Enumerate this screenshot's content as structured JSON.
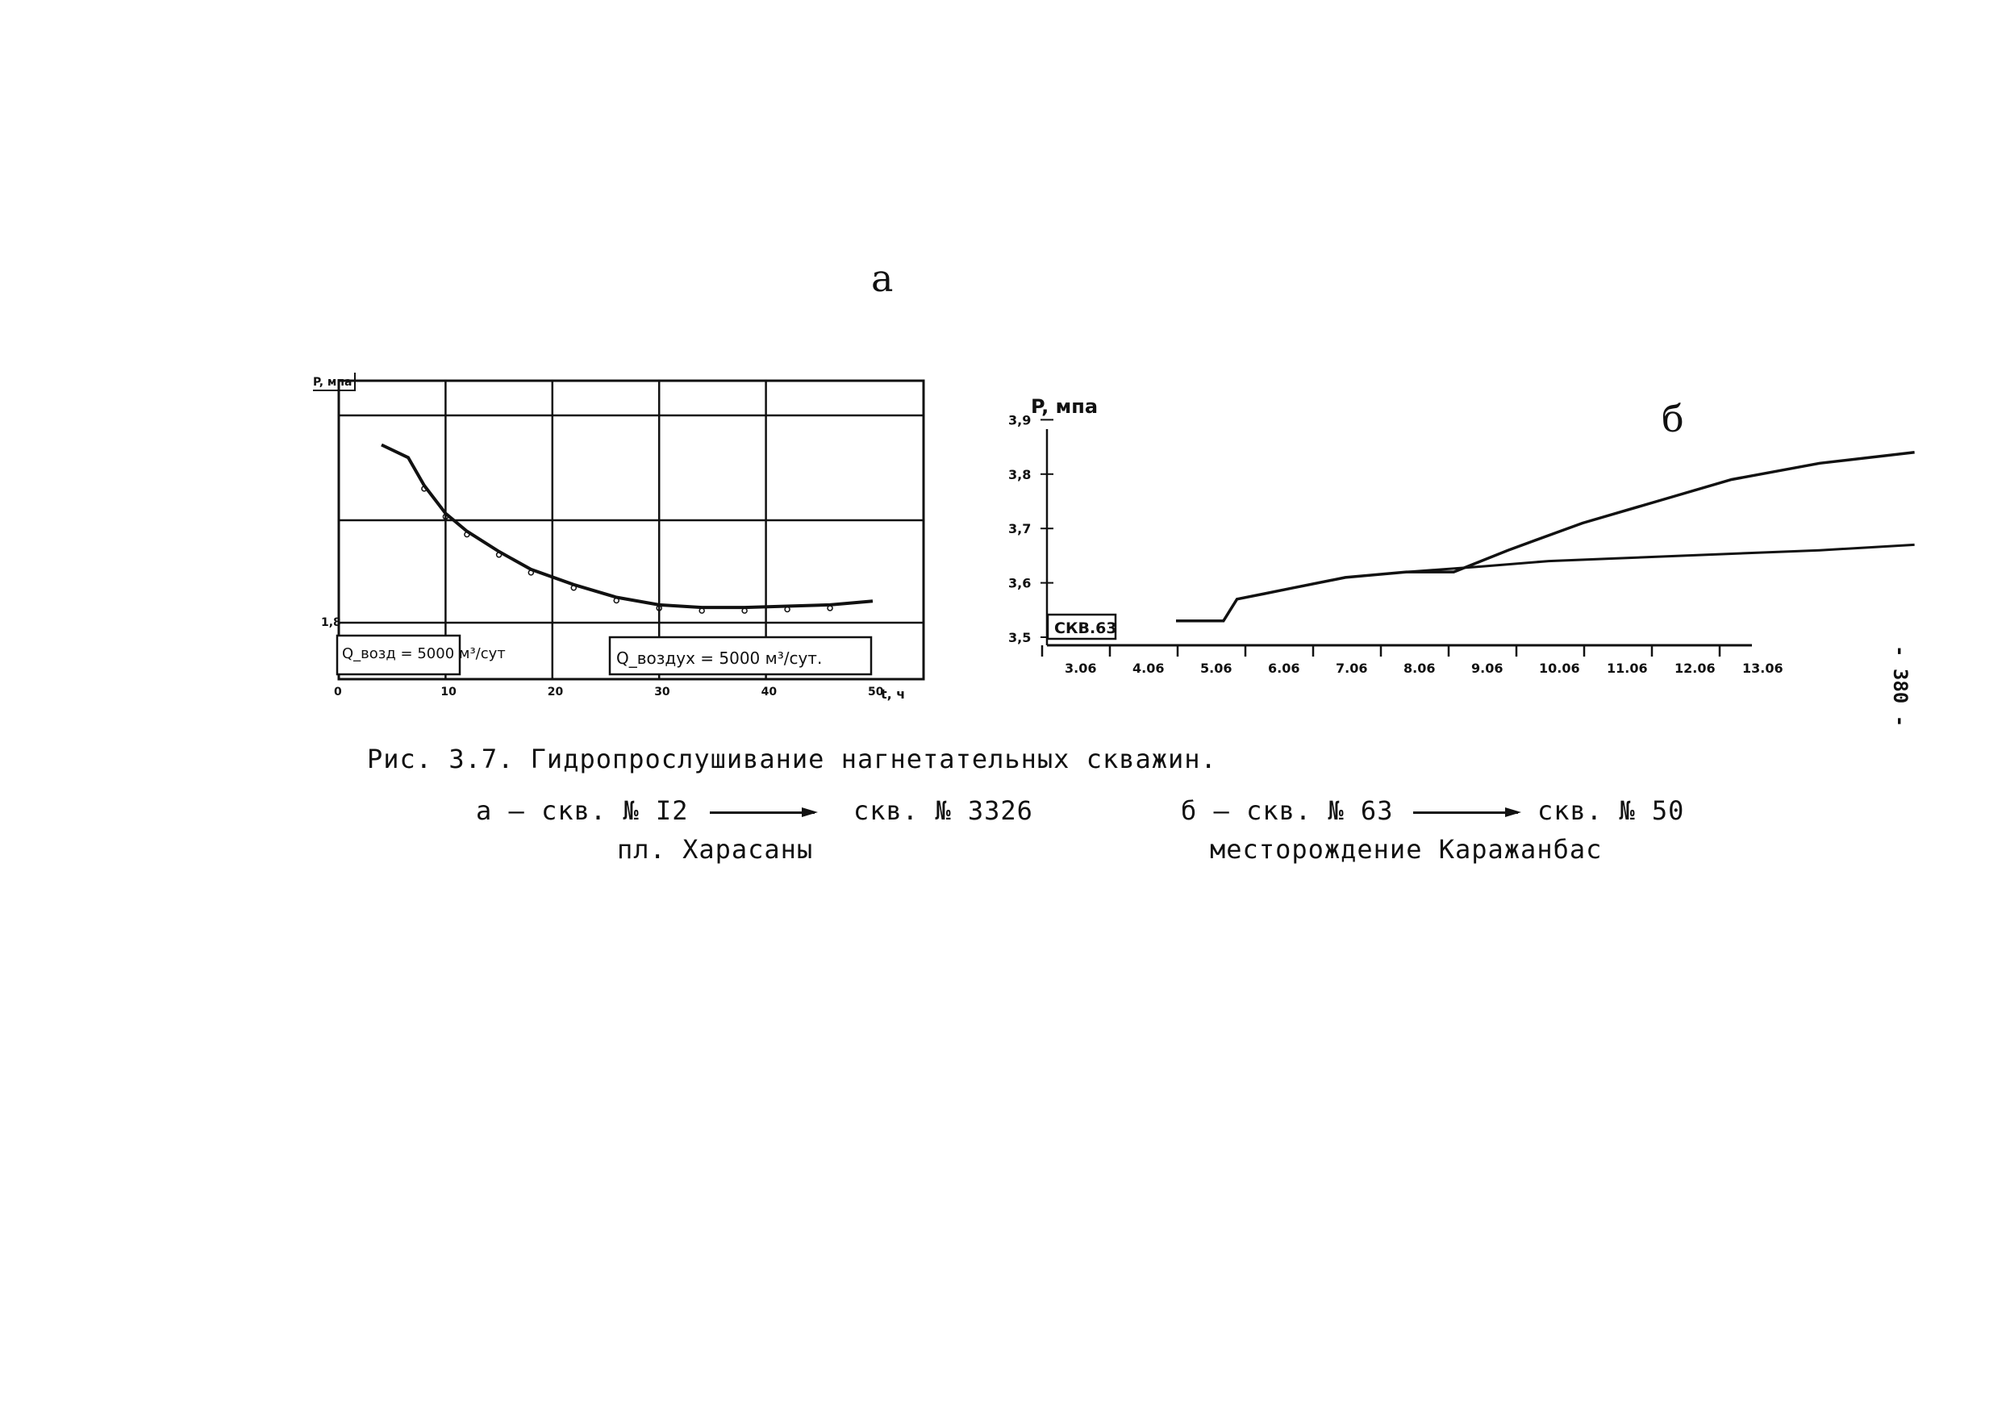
{
  "panel_a": {
    "letter": "a",
    "y_axis_label": "P, мпа",
    "y_tick_label": "1,8",
    "x_axis_label": "t, ч",
    "x_tick_labels": [
      "0",
      "10",
      "20",
      "30",
      "40",
      "50"
    ],
    "box_left": "Q_возд = 5000 м³/сут",
    "box_right": "Q_воздух = 5000 м³/сут."
  },
  "panel_b": {
    "letter": "б",
    "y_axis_label": "P, мпа",
    "y_tick_labels": [
      "3,5",
      "3,6",
      "3,7",
      "3,8",
      "3,9"
    ],
    "x_tick_labels": [
      "3.06",
      "4.06",
      "5.06",
      "6.06",
      "7.06",
      "8.06",
      "9.06",
      "10.06",
      "11.06",
      "12.06",
      "13.06"
    ],
    "well_box": "СКВ.63"
  },
  "chart_data": [
    {
      "type": "line",
      "panel": "a",
      "xlabel": "t, ч",
      "ylabel": "P, мпа",
      "x_ticks": [
        0,
        10,
        20,
        30,
        40,
        50
      ],
      "xlim": [
        0,
        52
      ],
      "grid": true,
      "series": [
        {
          "x": [
            4,
            6.5,
            8,
            10,
            12,
            15,
            18,
            22,
            26,
            30,
            34,
            38,
            42,
            46,
            50
          ],
          "y": [
            2.5,
            2.45,
            2.34,
            2.23,
            2.16,
            2.08,
            2.01,
            1.95,
            1.9,
            1.87,
            1.86,
            1.86,
            1.865,
            1.87,
            1.885
          ]
        }
      ]
    },
    {
      "type": "line",
      "panel": "b",
      "ylabel": "P, мпа",
      "categories": [
        "3.06",
        "4.06",
        "5.06",
        "6.06",
        "7.06",
        "8.06",
        "9.06",
        "10.06",
        "11.06",
        "12.06",
        "13.06"
      ],
      "ylim": [
        3.5,
        3.9
      ],
      "series": [
        {
          "x": [
            2.5,
            3.2,
            3.4,
            3.8,
            4.2,
            5,
            5.9,
            6.6,
            7.4,
            8.5,
            9.6,
            10.7,
            12,
            13.4
          ],
          "y": [
            3.53,
            3.53,
            3.57,
            3.58,
            3.59,
            3.61,
            3.62,
            3.62,
            3.66,
            3.71,
            3.75,
            3.79,
            3.82,
            3.84
          ]
        },
        {
          "x": [
            5.9,
            7,
            8,
            9,
            10,
            11,
            12,
            13.4
          ],
          "y": [
            3.62,
            3.63,
            3.64,
            3.645,
            3.65,
            3.655,
            3.66,
            3.67
          ]
        }
      ]
    }
  ],
  "caption": {
    "title": "Рис. 3.7.   Гидропрослушивание нагнетательных скважин.",
    "a_from": "а – скв. № I2",
    "a_to": "скв. № 3326",
    "a_site": "пл. Харасаны",
    "b_from": "б  – скв. № 63",
    "b_to": "скв. № 50",
    "b_site": "месторождение Каражанбас"
  },
  "page_number": "- 380 -"
}
